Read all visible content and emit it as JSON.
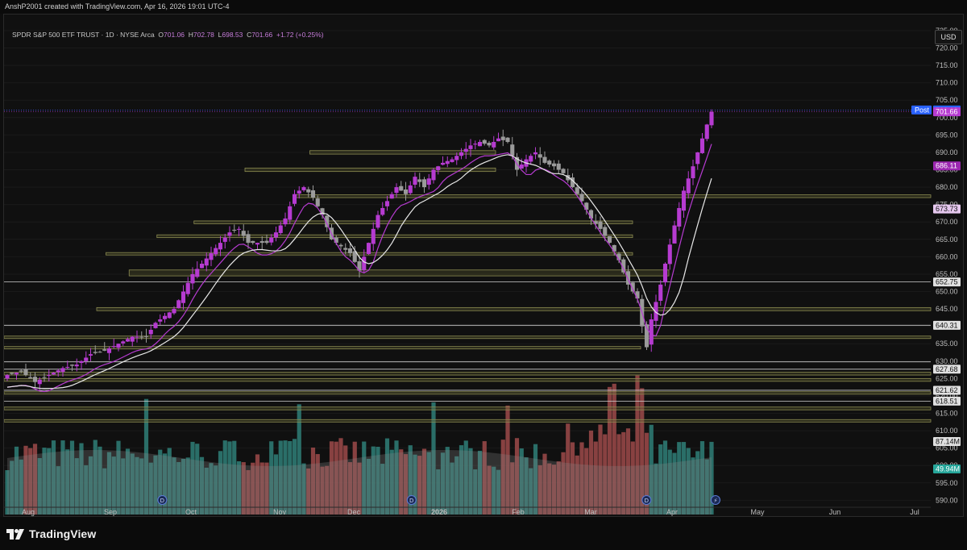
{
  "header": {
    "attribution": "AnshP2001 created with TradingView.com, Apr 16, 2026 19:01 UTC-4"
  },
  "legend": {
    "symbol": "SPDR S&P 500 ETF TRUST · 1D · NYSE Arca",
    "open_label": "O",
    "open": "701.06",
    "high_label": "H",
    "high": "702.78",
    "low_label": "L",
    "low": "698.53",
    "close_label": "C",
    "close": "701.66",
    "change": "+1.72 (+0.25%)"
  },
  "currency": "USD",
  "footer": {
    "brand": "TradingView"
  },
  "chart_data": {
    "type": "candlestick",
    "title": "SPDR S&P 500 ETF TRUST · 1D · NYSE Arca",
    "y_axis": {
      "ylim": [
        588,
        728
      ],
      "ticks": [
        725,
        720,
        715,
        710,
        705,
        700,
        695,
        690,
        685,
        680,
        675,
        670,
        665,
        660,
        655,
        650,
        645,
        640,
        635,
        630,
        625,
        620,
        615,
        610,
        605,
        600,
        595,
        590
      ],
      "position": "right"
    },
    "x_axis": {
      "labels": [
        "Aug",
        "Sep",
        "Oct",
        "Nov",
        "Dec",
        "2026",
        "Feb",
        "Mar",
        "Apr",
        "May",
        "Jun",
        "Jul"
      ]
    },
    "candles_close_path": [
      [
        0,
        626
      ],
      [
        3,
        627
      ],
      [
        6,
        624
      ],
      [
        9,
        626
      ],
      [
        12,
        628
      ],
      [
        15,
        629
      ],
      [
        18,
        632
      ],
      [
        21,
        633
      ],
      [
        24,
        635
      ],
      [
        27,
        637
      ],
      [
        30,
        637
      ],
      [
        32,
        641
      ],
      [
        34,
        643
      ],
      [
        36,
        645
      ],
      [
        38,
        650
      ],
      [
        40,
        655
      ],
      [
        42,
        658
      ],
      [
        44,
        661
      ],
      [
        46,
        664
      ],
      [
        48,
        667
      ],
      [
        50,
        668
      ],
      [
        52,
        664
      ],
      [
        54,
        664
      ],
      [
        56,
        664
      ],
      [
        58,
        667
      ],
      [
        60,
        671
      ],
      [
        62,
        678
      ],
      [
        64,
        680
      ],
      [
        66,
        677
      ],
      [
        68,
        672
      ],
      [
        70,
        665
      ],
      [
        72,
        663
      ],
      [
        74,
        661
      ],
      [
        76,
        656
      ],
      [
        78,
        664
      ],
      [
        80,
        672
      ],
      [
        82,
        676
      ],
      [
        84,
        680
      ],
      [
        86,
        678
      ],
      [
        88,
        683
      ],
      [
        90,
        680
      ],
      [
        92,
        685
      ],
      [
        94,
        687
      ],
      [
        96,
        688
      ],
      [
        98,
        690
      ],
      [
        100,
        692
      ],
      [
        102,
        693
      ],
      [
        104,
        692
      ],
      [
        106,
        694
      ],
      [
        108,
        693
      ],
      [
        110,
        685
      ],
      [
        112,
        688
      ],
      [
        114,
        690
      ],
      [
        116,
        687
      ],
      [
        118,
        686
      ],
      [
        120,
        684
      ],
      [
        122,
        680
      ],
      [
        124,
        676
      ],
      [
        126,
        671
      ],
      [
        128,
        668
      ],
      [
        130,
        664
      ],
      [
        132,
        659
      ],
      [
        134,
        652
      ],
      [
        136,
        648
      ],
      [
        137,
        640
      ],
      [
        138,
        634
      ],
      [
        139,
        642
      ],
      [
        141,
        652
      ],
      [
        142,
        658
      ],
      [
        144,
        669
      ],
      [
        146,
        679
      ],
      [
        148,
        686
      ],
      [
        149,
        690
      ],
      [
        150,
        694
      ],
      [
        151,
        698
      ],
      [
        152,
        701.66
      ]
    ],
    "series": [
      {
        "name": "SMA fast",
        "color": "#b63bd1"
      },
      {
        "name": "SMA slow",
        "color": "#e8e8e8"
      },
      {
        "name": "Volume",
        "type": "bar"
      }
    ],
    "price_labels": [
      {
        "label": "Post",
        "value": "702.19",
        "color": "#2962ff"
      },
      {
        "value": "701.66",
        "color": "#b63bd1"
      },
      {
        "value": "686.11",
        "color": "#9c27b0"
      },
      {
        "value": "673.73",
        "color": "#e6c8ef"
      },
      {
        "value": "652.75",
        "color": "#e0e0e0"
      },
      {
        "value": "640.31",
        "color": "#e0e0e0"
      },
      {
        "value": "627.68",
        "color": "#e0e0e0"
      },
      {
        "value": "621.62",
        "color": "#e0e0e0"
      },
      {
        "value": "618.51",
        "color": "#e0e0e0"
      },
      {
        "value": "87.14M",
        "color": "#e0e0e0"
      },
      {
        "value": "49.94M",
        "color": "#26a69a"
      }
    ],
    "zones": [
      {
        "from": 689.5,
        "to": 690.5,
        "start": 0.33,
        "end": 0.61
      },
      {
        "from": 684.5,
        "to": 685.5,
        "start": 0.26,
        "end": 0.61
      },
      {
        "from": 677,
        "to": 677.8,
        "start": 0.315,
        "end": 1.0
      },
      {
        "from": 669.5,
        "to": 670.3,
        "start": 0.205,
        "end": 0.78
      },
      {
        "from": 665.5,
        "to": 666.3,
        "start": 0.165,
        "end": 0.78
      },
      {
        "from": 660.5,
        "to": 661.2,
        "start": 0.11,
        "end": 0.78
      },
      {
        "from": 654.5,
        "to": 656.2,
        "start": 0.135,
        "end": 0.825
      },
      {
        "from": 644.5,
        "to": 645.4,
        "start": 0.1,
        "end": 1.0
      },
      {
        "from": 636.5,
        "to": 637.2,
        "start": 0.0,
        "end": 1.0
      },
      {
        "from": 633.5,
        "to": 634.2,
        "start": 0.0,
        "end": 0.79
      },
      {
        "from": 626,
        "to": 626.8,
        "start": 0.0,
        "end": 1.0
      },
      {
        "from": 624.2,
        "to": 625,
        "start": 0.0,
        "end": 1.0
      },
      {
        "from": 620.5,
        "to": 621.2,
        "start": 0.0,
        "end": 1.0
      },
      {
        "from": 616,
        "to": 616.8,
        "start": 0.0,
        "end": 1.0
      },
      {
        "from": 612.5,
        "to": 613.2,
        "start": 0.0,
        "end": 1.0
      }
    ],
    "levels": [
      652.75,
      640.31,
      629.8,
      627.68,
      621.62,
      618.51
    ],
    "event_markers": [
      {
        "symbol": "D",
        "pos": 0.165
      },
      {
        "symbol": "D",
        "pos": 0.425
      },
      {
        "symbol": "D",
        "pos": 0.67
      },
      {
        "symbol": "⚡",
        "pos": 0.742
      }
    ]
  }
}
